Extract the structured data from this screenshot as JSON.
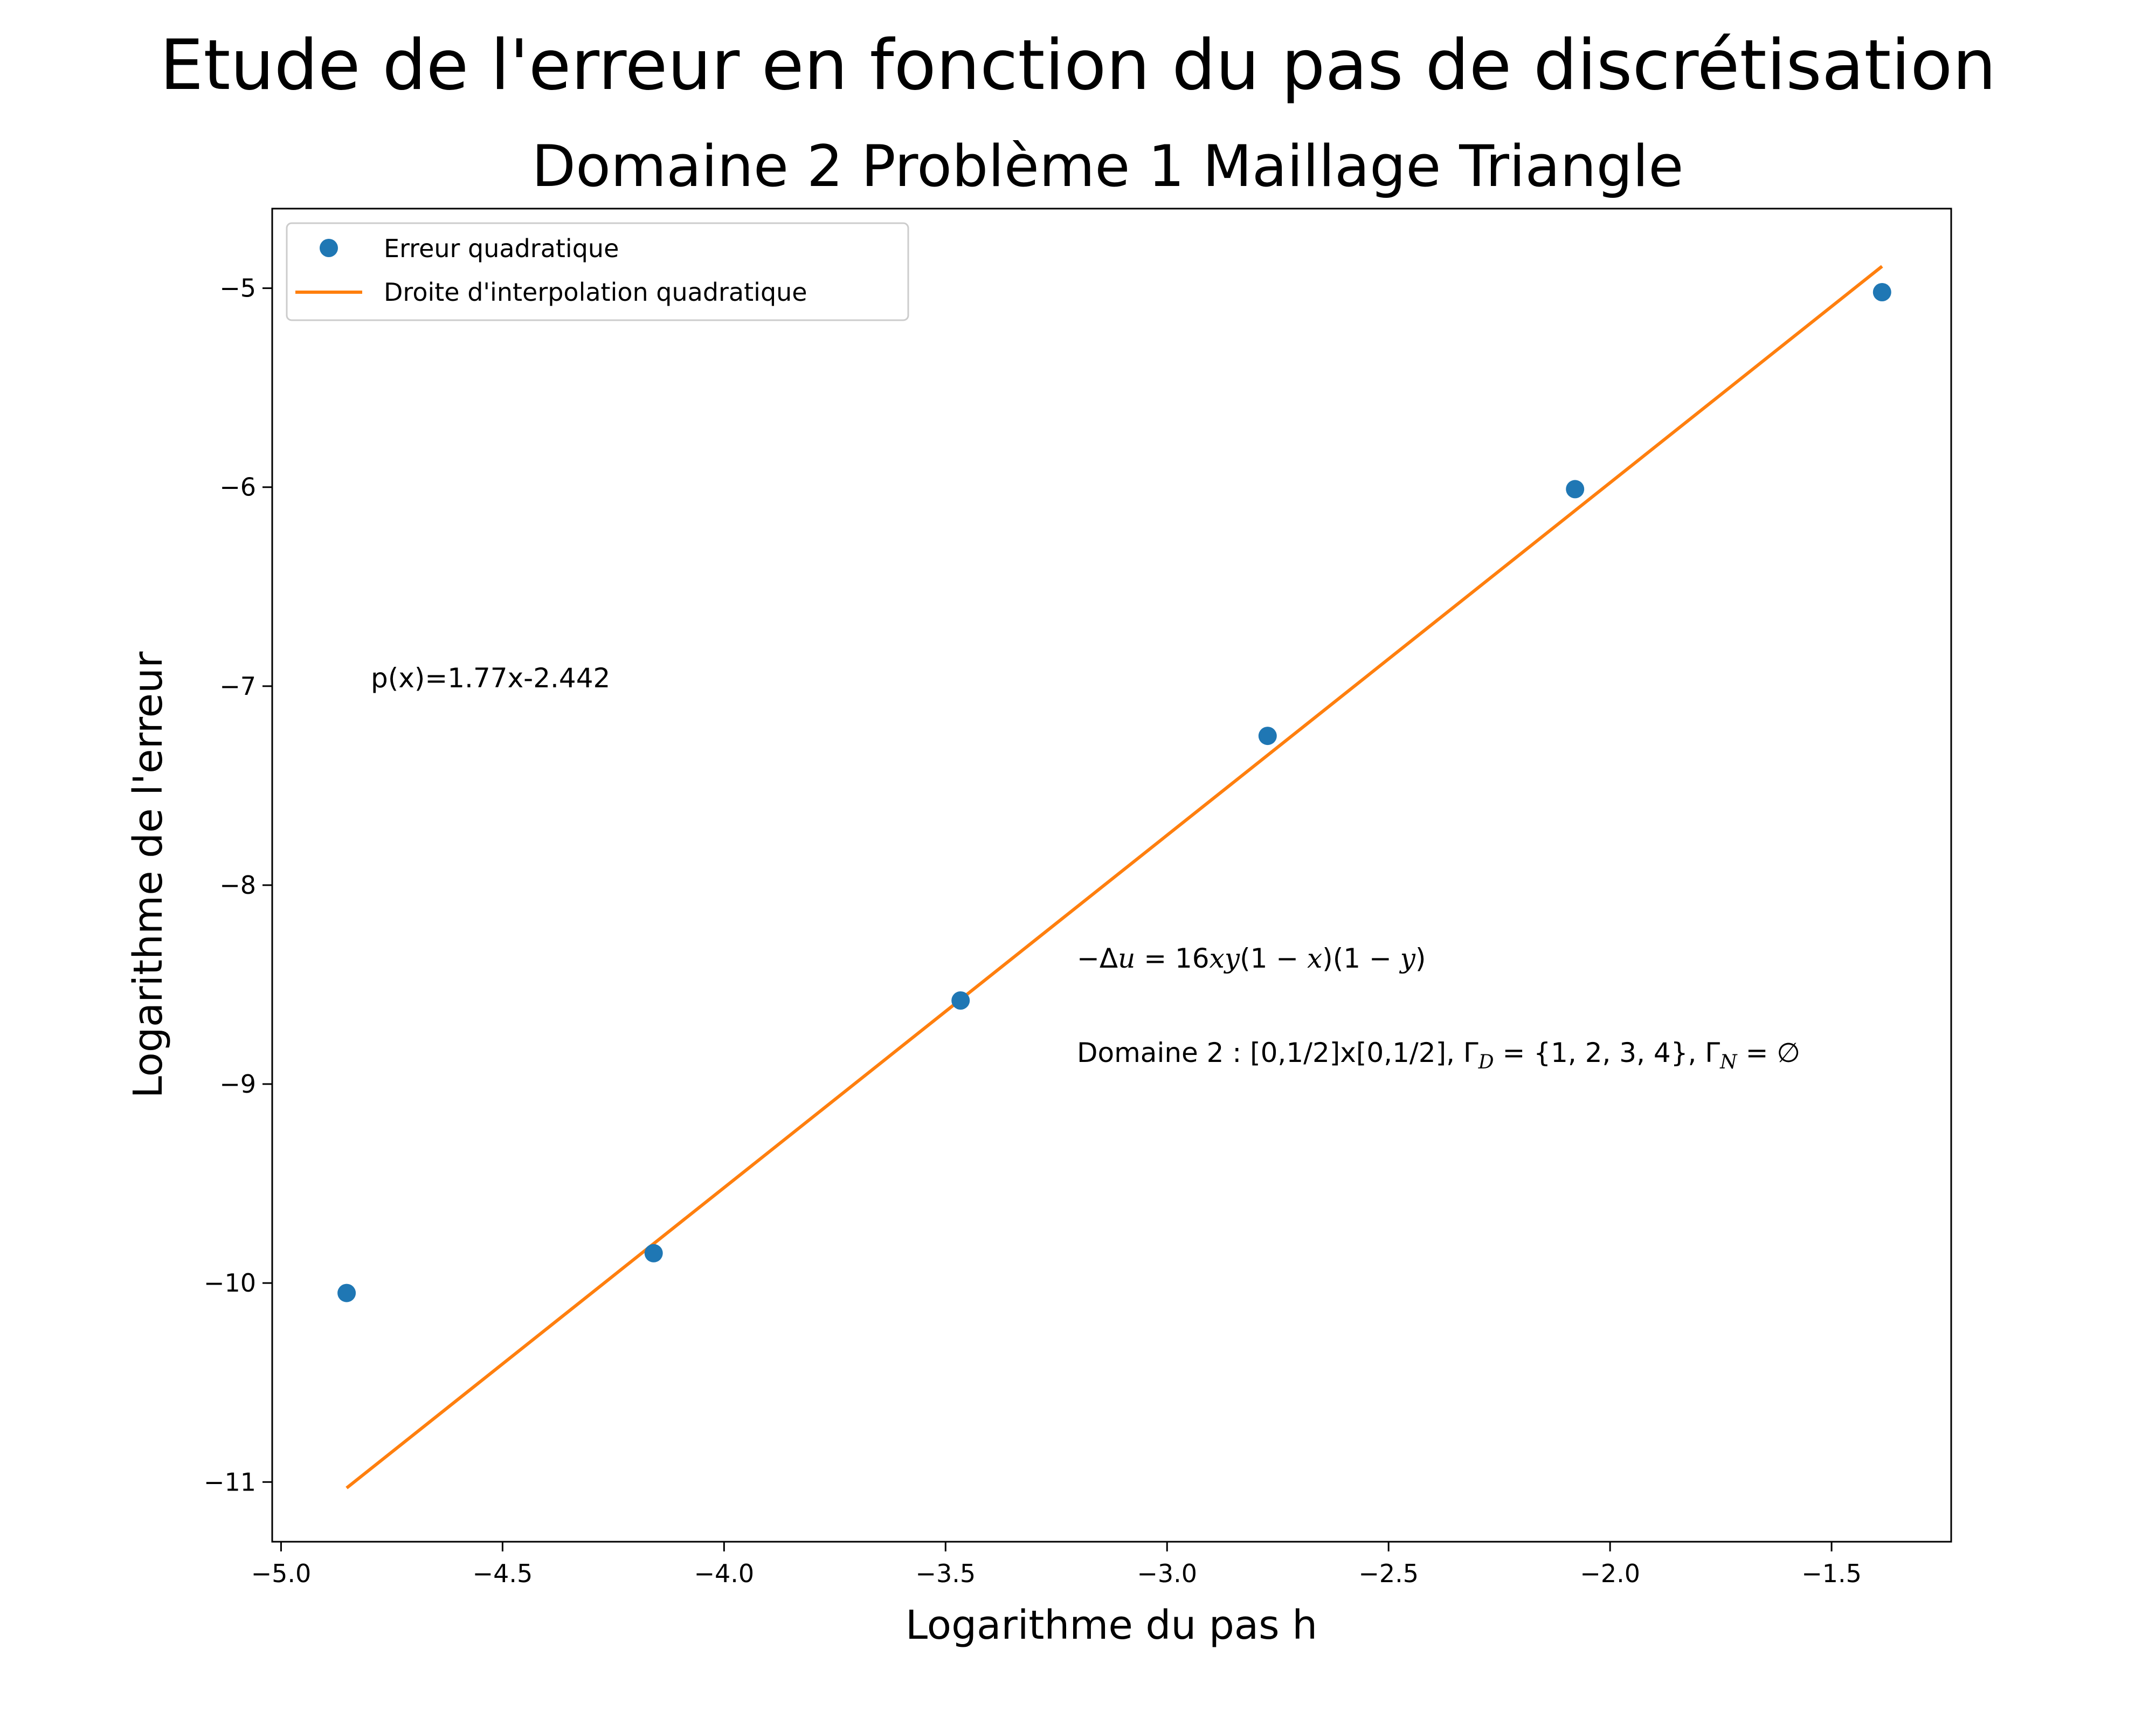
{
  "suptitle": "Etude de l'erreur en fonction du pas de discrétisation",
  "chart_data": {
    "type": "scatter",
    "title": "Domaine 2 Problème 1 Maillage Triangle",
    "xlabel": "Logarithme du pas h",
    "ylabel": "Logarithme de l'erreur",
    "xlim": [
      -5.02,
      -1.23
    ],
    "ylim": [
      -11.3,
      -4.6
    ],
    "xticks": [
      -5.0,
      -4.5,
      -4.0,
      -3.5,
      -3.0,
      -2.5,
      -2.0,
      -1.5
    ],
    "xtick_labels": [
      "−5.0",
      "−4.5",
      "−4.0",
      "−3.5",
      "−3.0",
      "−2.5",
      "−2.0",
      "−1.5"
    ],
    "yticks": [
      -11,
      -10,
      -9,
      -8,
      -7,
      -6,
      -5
    ],
    "ytick_labels": [
      "−11",
      "−10",
      "−9",
      "−8",
      "−7",
      "−6",
      "−5"
    ],
    "grid": false,
    "legend_position": "top-left",
    "series": [
      {
        "name": "Erreur quadratique",
        "kind": "points",
        "color": "#1f77b4",
        "x": [
          -4.852,
          -4.159,
          -3.466,
          -2.773,
          -2.079,
          -1.386
        ],
        "y": [
          -10.05,
          -9.85,
          -8.58,
          -7.25,
          -6.01,
          -5.02
        ]
      },
      {
        "name": "Droite d'interpolation quadratique",
        "kind": "line",
        "color": "#ff7f0e",
        "x": [
          -4.852,
          -1.386
        ],
        "y": [
          -11.03,
          -4.89
        ]
      }
    ],
    "annotations": {
      "fit": "p(x)=1.77x-2.442",
      "equation": {
        "lhs": "−Δ",
        "u": "u",
        "eq": " = 16",
        "x": "x",
        "y": "y",
        "rest1": "(1 − ",
        "rest2": ")(1 − ",
        "rest3": ")"
      },
      "domain": {
        "prefix": "Domaine 2 : [0,1/2]x[0,1/2], Γ",
        "sub_d": "D",
        "mid": " = {1, 2, 3, 4}, Γ",
        "sub_n": "N",
        "suffix": " = ∅"
      }
    }
  }
}
